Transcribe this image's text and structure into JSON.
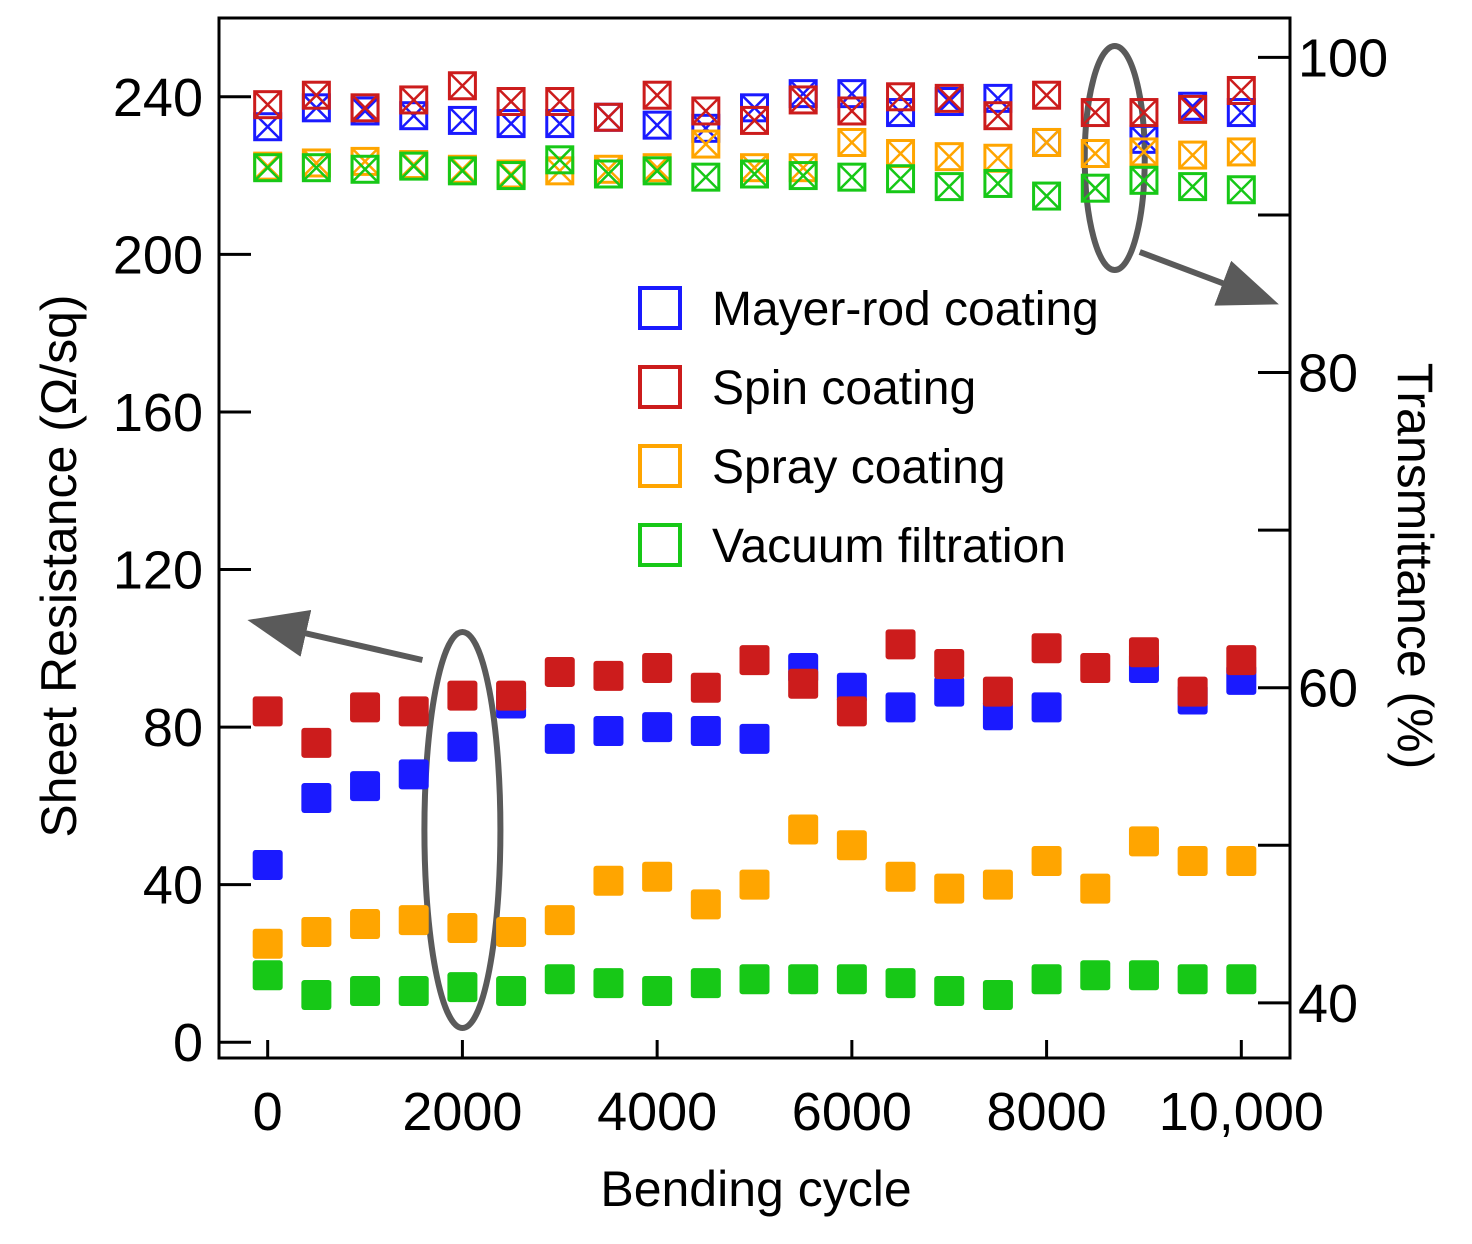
{
  "chart_data": {
    "type": "scatter",
    "xlabel": "Bending cycle",
    "ylabel_left": "Sheet Resistance (Ω/sq)",
    "ylabel_right": "Transmittance (%)",
    "xlim": [
      -500,
      10500
    ],
    "ylim_left": [
      -4,
      260
    ],
    "ylim_right": [
      36.5,
      102.5
    ],
    "x_ticks": [
      0,
      2000,
      4000,
      6000,
      8000,
      10000
    ],
    "x_tick_labels": [
      "0",
      "2000",
      "4000",
      "6000",
      "8000",
      "10,000"
    ],
    "y_left_ticks": [
      0,
      40,
      80,
      120,
      160,
      200,
      240
    ],
    "y_left_tick_labels": [
      "0",
      "40",
      "80",
      "120",
      "160",
      "200",
      "240"
    ],
    "y_right_ticks": [
      40,
      60,
      80,
      100
    ],
    "y_right_tick_labels": [
      "40",
      "60",
      "80",
      "100"
    ],
    "y_right_minor_ticks": [
      50,
      70,
      90
    ],
    "legend_position": "right-middle",
    "x": [
      0,
      500,
      1000,
      1500,
      2000,
      2500,
      3000,
      3500,
      4000,
      4500,
      5000,
      5500,
      6000,
      6500,
      7000,
      7500,
      8000,
      8500,
      9000,
      9500,
      10000
    ],
    "series": [
      {
        "name": "Mayer-rod coating",
        "color": "#1a1aff",
        "resistance": [
          45,
          62,
          65,
          68,
          75,
          86,
          77,
          79,
          80,
          79,
          77,
          95,
          90,
          85,
          89,
          83,
          85,
          null,
          95,
          87,
          92
        ],
        "transmittance": [
          95.6,
          96.8,
          96.6,
          96.3,
          96.0,
          95.8,
          95.8,
          96.2,
          95.7,
          95.5,
          96.8,
          97.7,
          97.7,
          96.5,
          97.2,
          97.4,
          94.6,
          null,
          94.8,
          96.9,
          96.5
        ]
      },
      {
        "name": "Spin coating",
        "color": "#cc1c1c",
        "resistance": [
          84,
          76,
          85,
          84,
          88,
          88,
          94,
          93,
          95,
          90,
          97,
          91,
          84,
          101,
          96,
          89,
          100,
          95,
          99,
          89,
          97
        ]
      },
      {
        "name": "Spray coating",
        "color": "#ffa500",
        "resistance": [
          25,
          28,
          30,
          31,
          29,
          28,
          31,
          41,
          42,
          35,
          40,
          54,
          50,
          42,
          39,
          40,
          46,
          39,
          51,
          46,
          46
        ]
      },
      {
        "name": "Vacuum filtration",
        "color": "#17c817",
        "resistance": [
          17,
          12,
          13,
          13,
          14,
          13,
          16,
          15,
          13,
          15,
          16,
          16,
          16,
          15,
          13,
          12,
          16,
          17,
          17,
          16,
          16
        ]
      }
    ],
    "transmittance_series": [
      {
        "name": "Mayer-rod coating",
        "color": "#1a1aff",
        "values": [
          95.6,
          96.8,
          96.6,
          96.3,
          96.0,
          95.8,
          95.8,
          96.2,
          95.7,
          95.5,
          96.8,
          97.7,
          97.7,
          96.5,
          97.2,
          97.4,
          94.6,
          null,
          94.8,
          96.9,
          96.5
        ]
      },
      {
        "name": "Spin coating",
        "color": "#cc1c1c",
        "values": [
          97.0,
          97.6,
          96.8,
          97.3,
          98.2,
          97.2,
          97.2,
          96.2,
          97.6,
          96.6,
          96.0,
          97.3,
          96.6,
          97.5,
          97.4,
          96.3,
          97.6,
          96.5,
          96.5,
          96.7,
          97.9
        ]
      },
      {
        "name": "Spray coating",
        "color": "#ffa500",
        "values": [
          93.1,
          93.3,
          93.4,
          93.2,
          92.9,
          92.6,
          92.8,
          92.9,
          93.0,
          94.5,
          93.0,
          93.0,
          94.6,
          93.9,
          93.7,
          93.6,
          94.6,
          93.9,
          94.0,
          93.8,
          94.0
        ]
      },
      {
        "name": "Vacuum filtration",
        "color": "#17c817",
        "values": [
          93.0,
          93.0,
          92.9,
          93.1,
          92.8,
          92.5,
          93.5,
          92.6,
          92.8,
          92.4,
          92.6,
          92.5,
          92.4,
          92.3,
          91.8,
          92.0,
          91.2,
          91.7,
          92.2,
          91.8,
          91.6
        ]
      }
    ],
    "annotations": [
      {
        "type": "ellipse",
        "around_x": 2000,
        "arrow_direction": "left",
        "points_to": "left axis"
      },
      {
        "type": "ellipse",
        "around_x": 8700,
        "arrow_direction": "right",
        "points_to": "right axis"
      }
    ]
  }
}
